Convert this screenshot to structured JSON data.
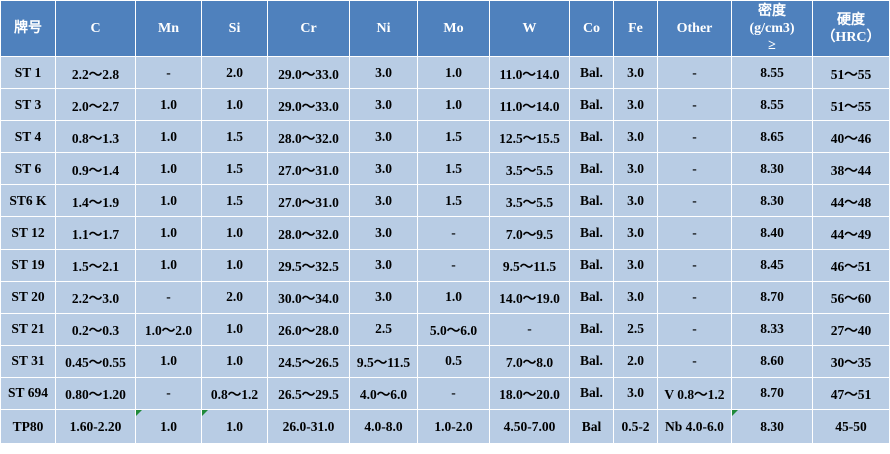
{
  "table": {
    "headers": [
      "牌号",
      "C",
      "Mn",
      "Si",
      "Cr",
      "Ni",
      "Mo",
      "W",
      "Co",
      "Fe",
      "Other",
      "密度\n(g/cm3)\n≥",
      "硬度\n（HRC）"
    ],
    "rows": [
      [
        "ST 1",
        "2.2～2.8",
        "-",
        "2.0",
        "29.0～33.0",
        "3.0",
        "1.0",
        "11.0～14.0",
        "Bal.",
        "3.0",
        "-",
        "8.55",
        "51～55"
      ],
      [
        "ST 3",
        "2.0～2.7",
        "1.0",
        "1.0",
        "29.0～33.0",
        "3.0",
        "1.0",
        "11.0～14.0",
        "Bal.",
        "3.0",
        "-",
        "8.55",
        "51～55"
      ],
      [
        "ST 4",
        "0.8～1.3",
        "1.0",
        "1.5",
        "28.0～32.0",
        "3.0",
        "1.5",
        "12.5～15.5",
        "Bal.",
        "3.0",
        "-",
        "8.65",
        "40～46"
      ],
      [
        "ST 6",
        "0.9～1.4",
        "1.0",
        "1.5",
        "27.0～31.0",
        "3.0",
        "1.5",
        "3.5～5.5",
        "Bal.",
        "3.0",
        "-",
        "8.30",
        "38～44"
      ],
      [
        "ST6 K",
        "1.4～1.9",
        "1.0",
        "1.5",
        "27.0～31.0",
        "3.0",
        "1.5",
        "3.5～5.5",
        "Bal.",
        "3.0",
        "-",
        "8.30",
        "44～48"
      ],
      [
        "ST 12",
        "1.1～1.7",
        "1.0",
        "1.0",
        "28.0～32.0",
        "3.0",
        "-",
        "7.0～9.5",
        "Bal.",
        "3.0",
        "-",
        "8.40",
        "44～49"
      ],
      [
        "ST 19",
        "1.5～2.1",
        "1.0",
        "1.0",
        "29.5～32.5",
        "3.0",
        "-",
        "9.5～11.5",
        "Bal.",
        "3.0",
        "-",
        "8.45",
        "46～51"
      ],
      [
        "ST 20",
        "2.2～3.0",
        "-",
        "2.0",
        "30.0～34.0",
        "3.0",
        "1.0",
        "14.0～19.0",
        "Bal.",
        "3.0",
        "-",
        "8.70",
        "56～60"
      ],
      [
        "ST 21",
        "0.2～0.3",
        "1.0～2.0",
        "1.0",
        "26.0～28.0",
        "2.5",
        "5.0～6.0",
        "-",
        "Bal.",
        "2.5",
        "-",
        "8.33",
        "27～40"
      ],
      [
        "ST 31",
        "0.45～0.55",
        "1.0",
        "1.0",
        "24.5～26.5",
        "9.5～11.5",
        "0.5",
        "7.0～8.0",
        "Bal.",
        "2.0",
        "-",
        "8.60",
        "30～35"
      ],
      [
        "ST 694",
        "0.80～1.20",
        "-",
        "0.8～1.2",
        "26.5～29.5",
        "4.0～6.0",
        "-",
        "18.0～20.0",
        "Bal.",
        "3.0",
        "V 0.8～1.2",
        "8.70",
        "47～51"
      ],
      [
        "TP80",
        "1.60-2.20",
        "1.0",
        "1.0",
        "26.0-31.0",
        "4.0-8.0",
        "1.0-2.0",
        "4.50-7.00",
        "Bal",
        "0.5-2",
        "Nb 4.0-6.0",
        "8.30",
        "45-50"
      ]
    ]
  }
}
